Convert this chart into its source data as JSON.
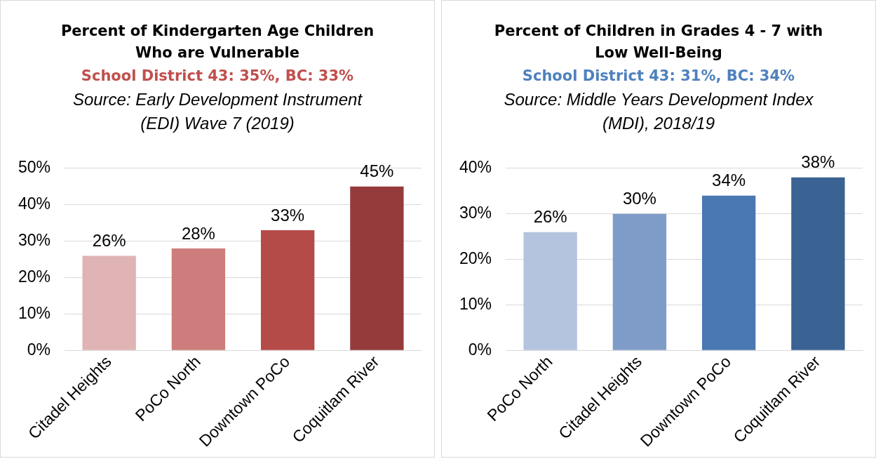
{
  "chart_data": [
    {
      "type": "bar",
      "title": "Percent of Kindergarten Age Children Who are Vulnerable",
      "subtitle": "School District 43: 35%, BC: 33%",
      "annotations": [
        "Source: Early Development Instrument (EDI) Wave 7 (2019)"
      ],
      "categories": [
        "Citadel Heights",
        "PoCo North",
        "Downtown PoCo",
        "Coquitlam River"
      ],
      "values": [
        26,
        28,
        33,
        45
      ],
      "colors": [
        "#e0b4b4",
        "#cd7d7b",
        "#b54b49",
        "#963b3b"
      ],
      "value_labels": [
        "26%",
        "28%",
        "33%",
        "45%"
      ],
      "ylim": [
        0,
        50
      ],
      "yticks": [
        {
          "value": 0,
          "label": "0%"
        },
        {
          "value": 10,
          "label": "10%"
        },
        {
          "value": 20,
          "label": "20%"
        },
        {
          "value": 30,
          "label": "30%"
        },
        {
          "value": 40,
          "label": "40%"
        },
        {
          "value": 50,
          "label": "50%"
        }
      ],
      "grid": "y",
      "legend": false
    },
    {
      "type": "bar",
      "title": "Percent of Children in Grades 4 - 7 with Low Well-Being",
      "subtitle": "School District 43: 31%, BC: 34%",
      "annotations": [
        "Source: Middle Years Development Index (MDI), 2018/19"
      ],
      "categories": [
        "PoCo North",
        "Citadel Heights",
        "Downtown PoCo",
        "Coquitlam River"
      ],
      "values": [
        26,
        30,
        34,
        38
      ],
      "colors": [
        "#b4c4de",
        "#7f9cc9",
        "#4a78b2",
        "#3a6394"
      ],
      "value_labels": [
        "26%",
        "30%",
        "34%",
        "38%"
      ],
      "ylim": [
        0,
        40
      ],
      "yticks": [
        {
          "value": 0,
          "label": "0%"
        },
        {
          "value": 10,
          "label": "10%"
        },
        {
          "value": 20,
          "label": "20%"
        },
        {
          "value": 30,
          "label": "30%"
        },
        {
          "value": 40,
          "label": "40%"
        }
      ],
      "grid": "y",
      "legend": false
    }
  ]
}
